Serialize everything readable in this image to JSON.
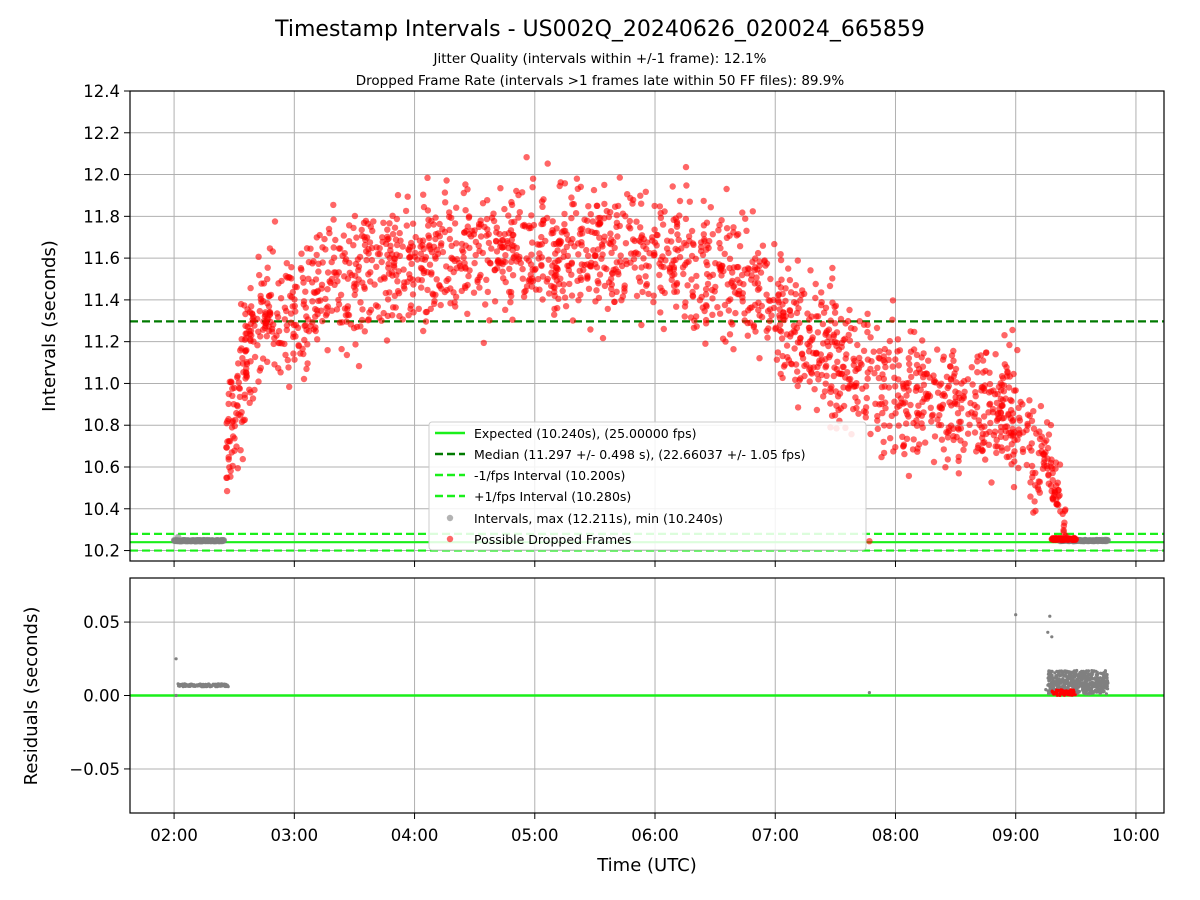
{
  "chart_data": [
    {
      "type": "scatter",
      "title": "Timestamp Intervals - US002Q_20240626_020024_665859",
      "subtitle_lines": [
        "Jitter Quality (intervals within +/-1 frame): 12.1%",
        "Dropped Frame Rate (intervals >1 frames late within 50 FF files): 89.9%"
      ],
      "ylabel": "Intervals (seconds)",
      "ylim": [
        10.15,
        12.4
      ],
      "yticks": [
        "10.2",
        "10.4",
        "10.6",
        "10.8",
        "11.0",
        "11.2",
        "11.4",
        "11.6",
        "11.8",
        "12.0",
        "12.2",
        "12.4"
      ],
      "grid": true,
      "legend_position": "lower-center",
      "reference_lines": [
        {
          "name": "Expected (10.240s), (25.00000 fps)",
          "y": 10.24,
          "style": "solid",
          "color": "#1aef1a"
        },
        {
          "name": "Median (11.297 +/- 0.498 s), (22.66037 +/- 1.05 fps)",
          "y": 11.297,
          "style": "dashed",
          "color": "#007a00"
        },
        {
          "name": "-1/fps Interval (10.200s)",
          "y": 10.2,
          "style": "dashed",
          "color": "#1aef1a"
        },
        {
          "name": "+1/fps Interval (10.280s)",
          "y": 10.28,
          "style": "dashed",
          "color": "#1aef1a"
        }
      ],
      "series": [
        {
          "name": "Intervals, max (12.211s), min (10.240s)",
          "color": "#808080",
          "segments": [
            {
              "start": "02:00",
              "end": "02:25",
              "y": 10.247
            },
            {
              "start": "09:22",
              "end": "09:46",
              "y": 10.248
            }
          ],
          "outliers": [
            {
              "x": "02:02",
              "y": 10.265
            }
          ]
        },
        {
          "name": "Possible Dropped Frames",
          "color": "#ff0000",
          "trend": [
            {
              "x": "02:26",
              "y": 10.7
            },
            {
              "x": "02:40",
              "y": 11.3
            },
            {
              "x": "03:00",
              "y": 11.35
            },
            {
              "x": "03:30",
              "y": 11.5
            },
            {
              "x": "04:00",
              "y": 11.6
            },
            {
              "x": "04:30",
              "y": 11.65
            },
            {
              "x": "05:00",
              "y": 11.62
            },
            {
              "x": "05:30",
              "y": 11.66
            },
            {
              "x": "06:00",
              "y": 11.62
            },
            {
              "x": "06:30",
              "y": 11.55
            },
            {
              "x": "07:00",
              "y": 11.35
            },
            {
              "x": "07:30",
              "y": 11.1
            },
            {
              "x": "08:00",
              "y": 10.95
            },
            {
              "x": "08:30",
              "y": 10.9
            },
            {
              "x": "09:00",
              "y": 10.85
            },
            {
              "x": "09:15",
              "y": 10.55
            },
            {
              "x": "09:25",
              "y": 10.25
            }
          ],
          "spread": 0.28,
          "max": 12.211
        }
      ]
    },
    {
      "type": "scatter",
      "ylabel": "Residuals (seconds)",
      "xlabel": "Time (UTC)",
      "ylim": [
        -0.08,
        0.08
      ],
      "yticks": [
        "−0.05",
        "0.00",
        "0.05"
      ],
      "xlim": [
        "01:38",
        "10:14"
      ],
      "xticks": [
        "02:00",
        "03:00",
        "04:00",
        "05:00",
        "06:00",
        "07:00",
        "08:00",
        "09:00",
        "10:00"
      ],
      "grid": true,
      "reference_lines": [
        {
          "y": 0.0,
          "style": "solid",
          "color": "#1aef1a"
        }
      ],
      "series": [
        {
          "color": "#808080",
          "segments": [
            {
              "start": "02:02",
              "end": "02:27",
              "y": 0.007
            }
          ],
          "points": [
            {
              "x": "02:01",
              "y": 0.025
            },
            {
              "x": "02:01",
              "y": 0.0
            },
            {
              "x": "07:47",
              "y": 0.002
            },
            {
              "x": "09:00",
              "y": 0.055
            },
            {
              "x": "09:17",
              "y": 0.054
            },
            {
              "x": "09:16",
              "y": 0.043
            },
            {
              "x": "09:18",
              "y": 0.04
            },
            {
              "x": "09:15",
              "y": 0.004
            }
          ],
          "cluster": {
            "start": "09:16",
            "end": "09:46",
            "ymin": 0.001,
            "ymax": 0.017
          }
        },
        {
          "color": "#ff0000",
          "cluster": {
            "start": "09:18",
            "end": "09:30",
            "ymin": 0.0,
            "ymax": 0.004
          }
        }
      ]
    }
  ]
}
